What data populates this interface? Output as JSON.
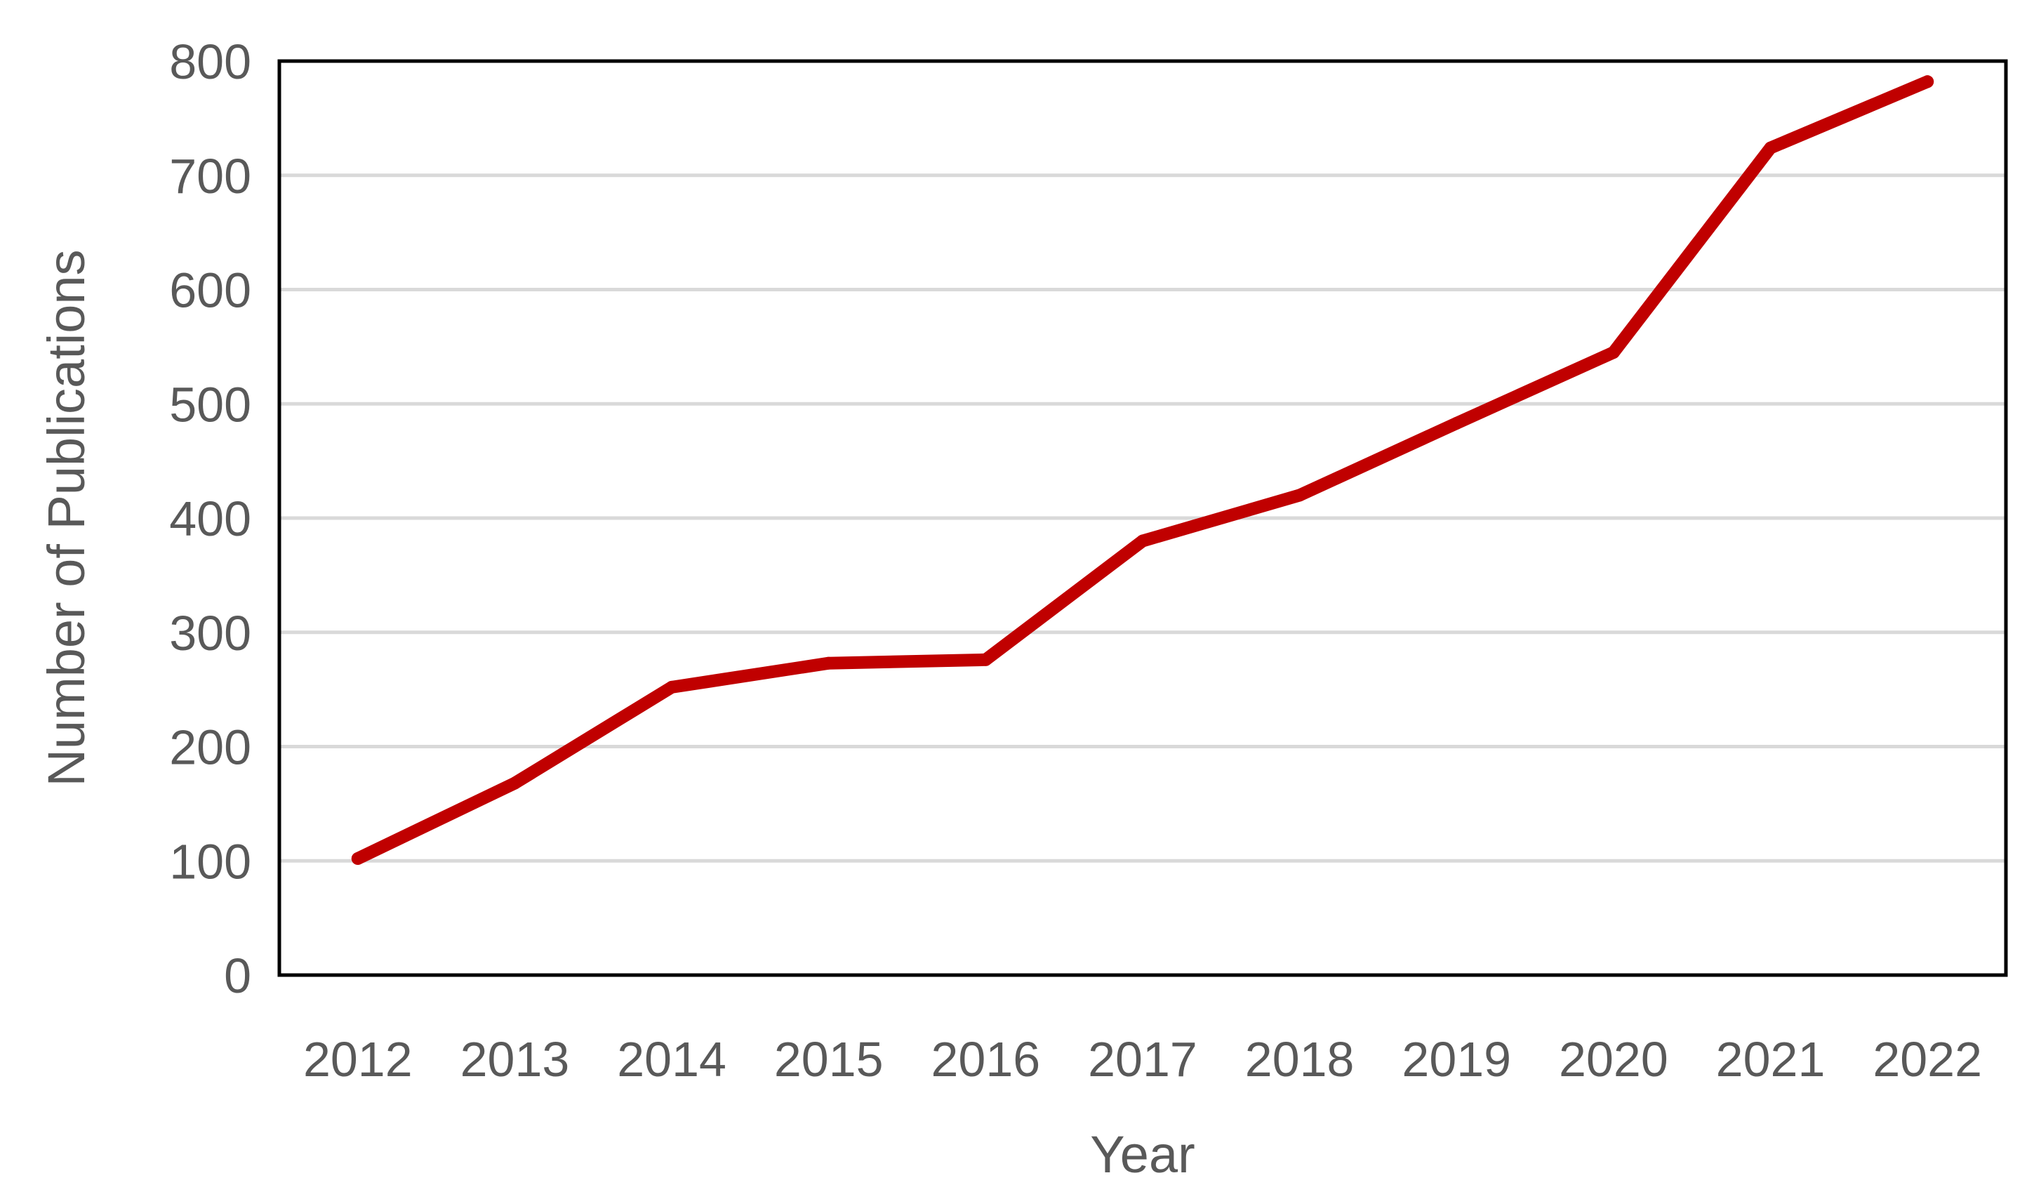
{
  "chart_data": {
    "type": "line",
    "title": "",
    "xlabel": "Year",
    "ylabel": "Number of Publications",
    "categories": [
      "2012",
      "2013",
      "2014",
      "2015",
      "2016",
      "2017",
      "2018",
      "2019",
      "2020",
      "2021",
      "2022"
    ],
    "series": [
      {
        "color": "#c00000",
        "values": [
          102,
          168,
          252,
          273,
          276,
          380,
          420,
          483,
          545,
          724,
          782
        ]
      }
    ],
    "ylim": [
      0,
      800
    ],
    "yticks": [
      "0",
      "100",
      "200",
      "300",
      "400",
      "500",
      "600",
      "700",
      "800"
    ],
    "grid": true,
    "legend": "none"
  }
}
